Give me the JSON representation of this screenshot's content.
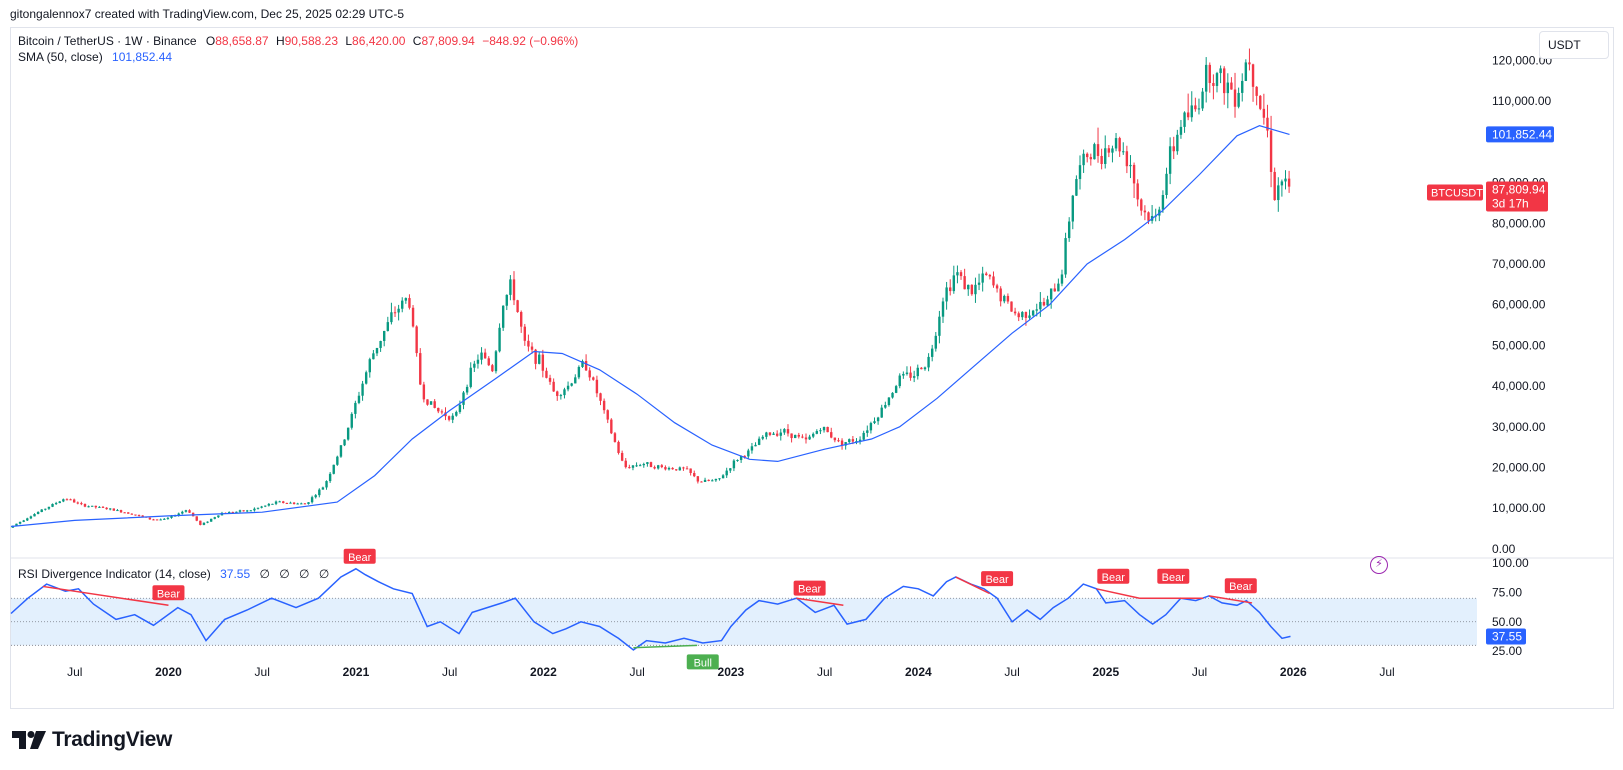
{
  "caption": "gitongalennox7 created with TradingView.com, Dec 25, 2025 02:29 UTC-5",
  "legend": {
    "symbol": "Bitcoin / TetherUS · 1W · Binance",
    "o_label": "O",
    "o": "88,658.87",
    "h_label": "H",
    "h": "90,588.23",
    "l_label": "L",
    "l": "86,420.00",
    "c_label": "C",
    "c": "87,809.94",
    "change": "−848.92 (−0.96%)",
    "sma_label": "SMA (50, close)",
    "sma_value": "101,852.44",
    "rsi_label": "RSI Divergence Indicator (14, close)",
    "rsi_value": "37.55",
    "rsi_extras": "∅ ∅ ∅ ∅"
  },
  "currency_button": "USDT",
  "price_tags": {
    "sma": "101,852.44",
    "ticker": "BTCUSDT",
    "last": "87,809.94",
    "countdown": "3d 17h",
    "rsi": "37.55"
  },
  "logo_text": "TradingView",
  "colors": {
    "up": "#089981",
    "down": "#f23645",
    "sma": "#2962ff",
    "rsi": "#2962ff",
    "rsi_band": "#e3f0fd",
    "bull": "#4caf50",
    "bear": "#f23645"
  },
  "chart_data": {
    "type": "candlestick",
    "title": "Bitcoin / TetherUS · 1W · Binance",
    "price_axis": {
      "ticks": [
        0,
        10000,
        20000,
        30000,
        40000,
        50000,
        60000,
        70000,
        80000,
        90000,
        110000,
        120000
      ],
      "tick_labels": [
        "0.00",
        "10,000.00",
        "20,000.00",
        "30,000.00",
        "40,000.00",
        "50,000.00",
        "60,000.00",
        "70,000.00",
        "80,000.00",
        "90,000.00",
        "110,000.00",
        "120,000.00"
      ],
      "ylim": [
        -2000,
        128000
      ]
    },
    "time_axis": {
      "labels": [
        "Jul",
        "2020",
        "Jul",
        "2021",
        "Jul",
        "2022",
        "Jul",
        "2023",
        "Jul",
        "2024",
        "Jul",
        "2025",
        "Jul",
        "2026",
        "Jul"
      ],
      "dates": [
        2019.5,
        2020.0,
        2020.5,
        2021.0,
        2021.5,
        2022.0,
        2022.5,
        2023.0,
        2023.5,
        2024.0,
        2024.5,
        2025.0,
        2025.5,
        2026.0,
        2026.5
      ],
      "xlim": [
        2019.16,
        2026.98
      ]
    },
    "price_path": [
      [
        2019.17,
        5200
      ],
      [
        2019.28,
        8000
      ],
      [
        2019.47,
        12500
      ],
      [
        2019.55,
        10800
      ],
      [
        2019.7,
        9800
      ],
      [
        2019.82,
        8700
      ],
      [
        2019.92,
        7300
      ],
      [
        2020.0,
        7200
      ],
      [
        2020.12,
        9700
      ],
      [
        2020.19,
        5800
      ],
      [
        2020.3,
        8800
      ],
      [
        2020.45,
        9400
      ],
      [
        2020.6,
        11500
      ],
      [
        2020.75,
        11000
      ],
      [
        2020.85,
        15500
      ],
      [
        2020.95,
        26000
      ],
      [
        2021.02,
        36000
      ],
      [
        2021.1,
        47000
      ],
      [
        2021.22,
        58000
      ],
      [
        2021.3,
        62000
      ],
      [
        2021.37,
        38000
      ],
      [
        2021.45,
        34000
      ],
      [
        2021.55,
        32000
      ],
      [
        2021.6,
        40000
      ],
      [
        2021.68,
        48000
      ],
      [
        2021.75,
        44000
      ],
      [
        2021.8,
        60000
      ],
      [
        2021.85,
        65000
      ],
      [
        2021.92,
        50000
      ],
      [
        2022.0,
        46000
      ],
      [
        2022.08,
        38000
      ],
      [
        2022.15,
        40000
      ],
      [
        2022.24,
        46000
      ],
      [
        2022.3,
        39000
      ],
      [
        2022.37,
        30000
      ],
      [
        2022.45,
        20000
      ],
      [
        2022.55,
        21000
      ],
      [
        2022.65,
        20000
      ],
      [
        2022.78,
        19500
      ],
      [
        2022.85,
        16500
      ],
      [
        2022.95,
        16800
      ],
      [
        2023.05,
        22000
      ],
      [
        2023.12,
        24000
      ],
      [
        2023.2,
        28000
      ],
      [
        2023.3,
        29000
      ],
      [
        2023.42,
        26500
      ],
      [
        2023.5,
        30000
      ],
      [
        2023.6,
        26000
      ],
      [
        2023.7,
        27000
      ],
      [
        2023.82,
        34000
      ],
      [
        2023.92,
        42000
      ],
      [
        2024.0,
        43000
      ],
      [
        2024.08,
        47000
      ],
      [
        2024.15,
        62000
      ],
      [
        2024.22,
        68000
      ],
      [
        2024.3,
        63000
      ],
      [
        2024.38,
        67000
      ],
      [
        2024.46,
        62000
      ],
      [
        2024.55,
        57000
      ],
      [
        2024.62,
        59000
      ],
      [
        2024.7,
        60000
      ],
      [
        2024.78,
        67000
      ],
      [
        2024.85,
        90000
      ],
      [
        2024.92,
        97000
      ],
      [
        2025.0,
        98000
      ],
      [
        2025.08,
        100000
      ],
      [
        2025.15,
        95000
      ],
      [
        2025.2,
        84000
      ],
      [
        2025.28,
        80000
      ],
      [
        2025.35,
        94000
      ],
      [
        2025.42,
        105000
      ],
      [
        2025.5,
        108000
      ],
      [
        2025.56,
        118000
      ],
      [
        2025.64,
        115000
      ],
      [
        2025.72,
        112000
      ],
      [
        2025.78,
        122000
      ],
      [
        2025.84,
        110000
      ],
      [
        2025.88,
        103000
      ],
      [
        2025.92,
        87000
      ],
      [
        2025.96,
        91000
      ],
      [
        2025.985,
        87810
      ]
    ],
    "sma_path": [
      [
        2019.16,
        5500
      ],
      [
        2019.5,
        7000
      ],
      [
        2020.0,
        8100
      ],
      [
        2020.5,
        9000
      ],
      [
        2020.9,
        11500
      ],
      [
        2021.1,
        18000
      ],
      [
        2021.3,
        27000
      ],
      [
        2021.5,
        34000
      ],
      [
        2021.75,
        42000
      ],
      [
        2021.95,
        48500
      ],
      [
        2022.1,
        48000
      ],
      [
        2022.3,
        44000
      ],
      [
        2022.5,
        38000
      ],
      [
        2022.7,
        31000
      ],
      [
        2022.9,
        25500
      ],
      [
        2023.1,
        22000
      ],
      [
        2023.25,
        21500
      ],
      [
        2023.5,
        24500
      ],
      [
        2023.75,
        27000
      ],
      [
        2023.9,
        30000
      ],
      [
        2024.1,
        37000
      ],
      [
        2024.3,
        45000
      ],
      [
        2024.5,
        53000
      ],
      [
        2024.7,
        60000
      ],
      [
        2024.9,
        70000
      ],
      [
        2025.1,
        76000
      ],
      [
        2025.3,
        83000
      ],
      [
        2025.5,
        92000
      ],
      [
        2025.7,
        101500
      ],
      [
        2025.82,
        104000
      ],
      [
        2025.98,
        101852
      ]
    ],
    "rsi": {
      "label": "RSI Divergence Indicator (14, close)",
      "ticks": [
        25,
        50,
        75,
        100
      ],
      "tick_labels": [
        "25.00",
        "50.00",
        "75.00",
        "100.00"
      ],
      "band": [
        30,
        70
      ],
      "path": [
        [
          2019.16,
          57
        ],
        [
          2019.25,
          70
        ],
        [
          2019.35,
          82
        ],
        [
          2019.45,
          76
        ],
        [
          2019.52,
          78
        ],
        [
          2019.6,
          65
        ],
        [
          2019.72,
          52
        ],
        [
          2019.82,
          56
        ],
        [
          2019.92,
          47
        ],
        [
          2020.05,
          62
        ],
        [
          2020.12,
          56
        ],
        [
          2020.2,
          34
        ],
        [
          2020.3,
          52
        ],
        [
          2020.42,
          60
        ],
        [
          2020.55,
          70
        ],
        [
          2020.68,
          62
        ],
        [
          2020.8,
          70
        ],
        [
          2020.92,
          88
        ],
        [
          2021.0,
          95
        ],
        [
          2021.05,
          90
        ],
        [
          2021.12,
          84
        ],
        [
          2021.2,
          78
        ],
        [
          2021.3,
          74
        ],
        [
          2021.38,
          46
        ],
        [
          2021.45,
          50
        ],
        [
          2021.55,
          40
        ],
        [
          2021.62,
          58
        ],
        [
          2021.7,
          62
        ],
        [
          2021.78,
          66
        ],
        [
          2021.85,
          70
        ],
        [
          2021.95,
          50
        ],
        [
          2022.05,
          40
        ],
        [
          2022.12,
          44
        ],
        [
          2022.2,
          50
        ],
        [
          2022.3,
          46
        ],
        [
          2022.4,
          36
        ],
        [
          2022.48,
          26
        ],
        [
          2022.55,
          34
        ],
        [
          2022.65,
          32
        ],
        [
          2022.75,
          36
        ],
        [
          2022.85,
          32
        ],
        [
          2022.95,
          34
        ],
        [
          2023.0,
          46
        ],
        [
          2023.08,
          60
        ],
        [
          2023.15,
          68
        ],
        [
          2023.25,
          65
        ],
        [
          2023.35,
          70
        ],
        [
          2023.45,
          58
        ],
        [
          2023.55,
          64
        ],
        [
          2023.62,
          48
        ],
        [
          2023.72,
          52
        ],
        [
          2023.82,
          70
        ],
        [
          2023.92,
          80
        ],
        [
          2024.0,
          78
        ],
        [
          2024.08,
          72
        ],
        [
          2024.15,
          84
        ],
        [
          2024.2,
          88
        ],
        [
          2024.28,
          82
        ],
        [
          2024.35,
          78
        ],
        [
          2024.42,
          70
        ],
        [
          2024.5,
          50
        ],
        [
          2024.58,
          60
        ],
        [
          2024.65,
          52
        ],
        [
          2024.72,
          62
        ],
        [
          2024.8,
          70
        ],
        [
          2024.88,
          82
        ],
        [
          2024.95,
          78
        ],
        [
          2025.0,
          66
        ],
        [
          2025.1,
          68
        ],
        [
          2025.18,
          56
        ],
        [
          2025.25,
          48
        ],
        [
          2025.32,
          56
        ],
        [
          2025.4,
          70
        ],
        [
          2025.48,
          68
        ],
        [
          2025.55,
          72
        ],
        [
          2025.62,
          66
        ],
        [
          2025.7,
          64
        ],
        [
          2025.75,
          68
        ],
        [
          2025.82,
          58
        ],
        [
          2025.88,
          46
        ],
        [
          2025.94,
          36
        ],
        [
          2025.985,
          37.55
        ]
      ],
      "divergence_lines": [
        {
          "x1": 2019.33,
          "y1": 80,
          "x2": 2020.0,
          "y2": 64,
          "kind": "bear"
        },
        {
          "x1": 2023.35,
          "y1": 70,
          "x2": 2023.6,
          "y2": 64,
          "kind": "bear"
        },
        {
          "x1": 2024.2,
          "y1": 88,
          "x2": 2024.38,
          "y2": 74,
          "kind": "bear"
        },
        {
          "x1": 2024.95,
          "y1": 78,
          "x2": 2025.18,
          "y2": 70,
          "kind": "bear"
        },
        {
          "x1": 2025.18,
          "y1": 70,
          "x2": 2025.52,
          "y2": 70,
          "kind": "bear"
        },
        {
          "x1": 2025.55,
          "y1": 72,
          "x2": 2025.78,
          "y2": 66,
          "kind": "bear"
        },
        {
          "x1": 2022.48,
          "y1": 28,
          "x2": 2022.82,
          "y2": 30,
          "kind": "bull"
        }
      ],
      "labels": [
        {
          "x": 2020.0,
          "y": 64,
          "text": "Bear"
        },
        {
          "x": 2021.02,
          "y": 95,
          "text": "Bear"
        },
        {
          "x": 2023.42,
          "y": 68,
          "text": "Bear"
        },
        {
          "x": 2024.42,
          "y": 76,
          "text": "Bear"
        },
        {
          "x": 2025.04,
          "y": 78,
          "text": "Bear"
        },
        {
          "x": 2025.36,
          "y": 78,
          "text": "Bear"
        },
        {
          "x": 2025.72,
          "y": 70,
          "text": "Bear"
        },
        {
          "x": 2022.85,
          "y": 24,
          "text": "Bull"
        }
      ]
    }
  }
}
